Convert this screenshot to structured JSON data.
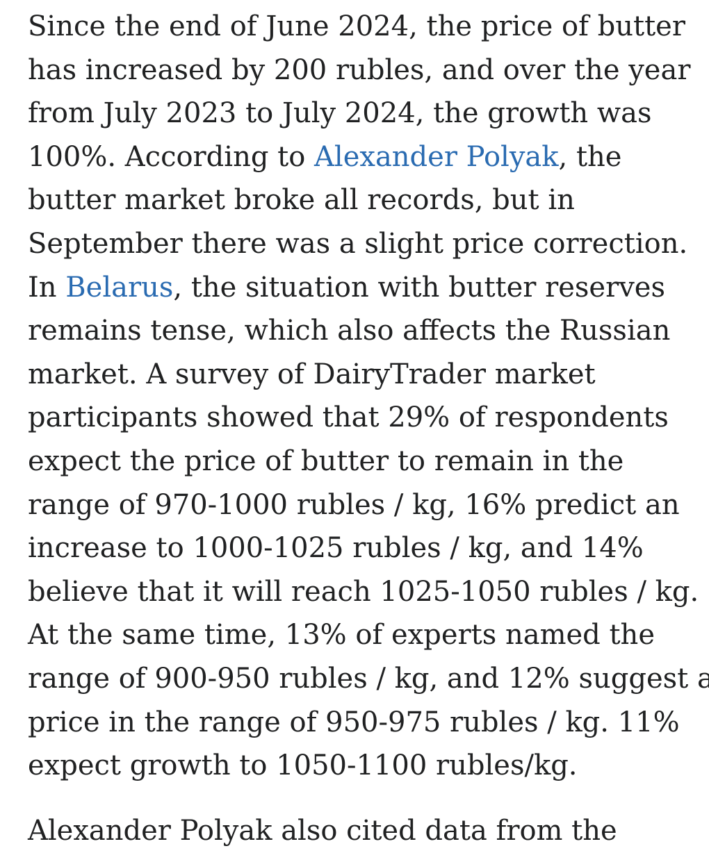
{
  "paragraph1": {
    "lines": [
      {
        "text": "Since the end of June 2024, the price of butter"
      },
      {
        "text": "has increased by 200 rubles, and over the year"
      },
      {
        "text": "from July 2023 to July 2024, the growth was"
      },
      {
        "pre": "100%. According to ",
        "link": "Alexander Polyak",
        "post": ", the"
      },
      {
        "text": "butter market broke all records, but in"
      },
      {
        "text": "September there was a slight price correction."
      },
      {
        "pre": "In ",
        "link": "Belarus",
        "post": ", the situation with butter reserves"
      },
      {
        "text": "remains tense, which also affects the Russian"
      },
      {
        "text": "market. A survey of DairyTrader market"
      },
      {
        "text": "participants showed that 29% of respondents"
      },
      {
        "text": "expect the price of butter to remain in the"
      },
      {
        "text": "range of 970-1000 rubles / kg, 16% predict an"
      },
      {
        "text": "increase to 1000-1025 rubles / kg, and 14%"
      },
      {
        "text": "believe that it will reach 1025-1050 rubles / kg."
      },
      {
        "text": "At the same time, 13% of experts named the"
      },
      {
        "text": "range of 900-950 rubles / kg, and 12% suggest a"
      },
      {
        "text": "price in the range of 950-975 rubles / kg. 11%"
      },
      {
        "text": "expect growth to 1050-1100 rubles/kg."
      }
    ]
  },
  "paragraph2": {
    "partial_line": "Alexander Polyak also cited data from the"
  }
}
